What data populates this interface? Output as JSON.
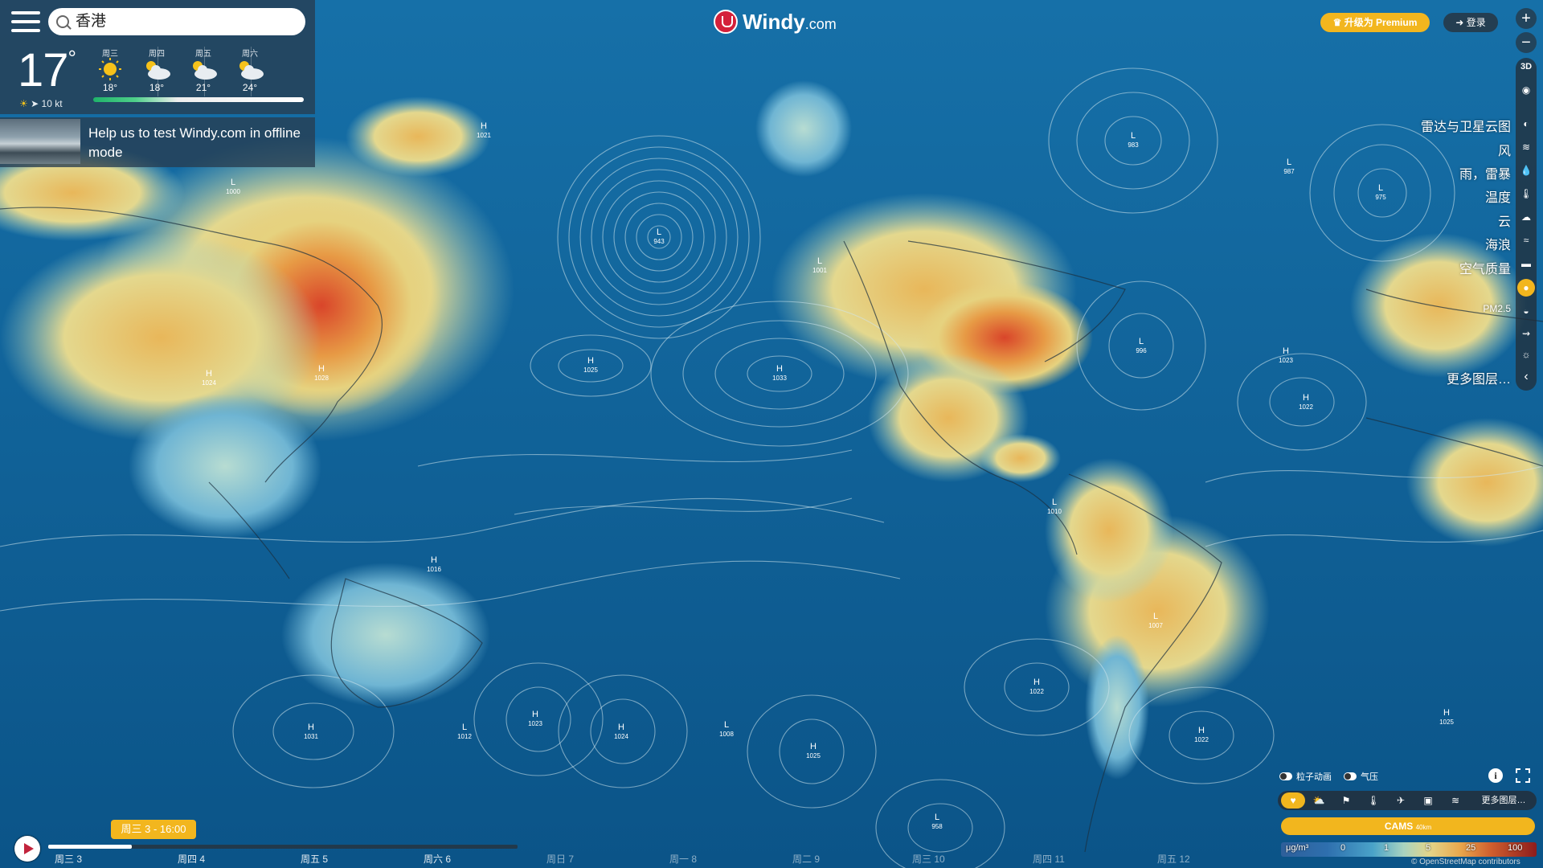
{
  "search": {
    "value": "香港"
  },
  "current": {
    "temp": "17",
    "unit": "°",
    "wind": "10 kt"
  },
  "forecast": [
    {
      "day": "周三",
      "temp": "18°",
      "icon": "sun-icon"
    },
    {
      "day": "周四",
      "temp": "18°",
      "icon": "partly-cloudy-icon"
    },
    {
      "day": "周五",
      "temp": "21°",
      "icon": "partly-cloudy-icon"
    },
    {
      "day": "周六",
      "temp": "24°",
      "icon": "partly-cloudy-icon"
    }
  ],
  "promo": {
    "text": "Help us to test Windy.com in offline mode"
  },
  "logo": {
    "name": "Windy",
    "suffix": ".com"
  },
  "topbar": {
    "premium": "升级为 Premium",
    "login": "登录"
  },
  "zoom": {
    "in": "+",
    "out": "−"
  },
  "layers": [
    {
      "label": "雷达与卫星云图",
      "icon": "radar-icon"
    },
    {
      "label": "风",
      "icon": "wind-icon"
    },
    {
      "label": "雨，雷暴",
      "icon": "rain-icon"
    },
    {
      "label": "温度",
      "icon": "thermometer-icon"
    },
    {
      "label": "云",
      "icon": "cloud-icon"
    },
    {
      "label": "海浪",
      "icon": "waves-icon"
    },
    {
      "label": "空气质量",
      "icon": "car-icon"
    },
    {
      "label": "PM2.5",
      "icon": "pm25-icon"
    },
    {
      "label": "更多图层…",
      "icon": "chevron-left-icon"
    }
  ],
  "rail_extra": {
    "mode3d": "3D"
  },
  "map": {
    "pressure_centers": [
      {
        "t": "H",
        "v": "1025"
      },
      {
        "t": "H",
        "v": "1033"
      },
      {
        "t": "L",
        "v": "943"
      },
      {
        "t": "L",
        "v": "983"
      },
      {
        "t": "H",
        "v": "1028"
      },
      {
        "t": "H",
        "v": "1024"
      },
      {
        "t": "L",
        "v": "1001"
      },
      {
        "t": "L",
        "v": "996"
      },
      {
        "t": "H",
        "v": "1023"
      },
      {
        "t": "H",
        "v": "1022"
      },
      {
        "t": "H",
        "v": "1031"
      },
      {
        "t": "H",
        "v": "1023"
      },
      {
        "t": "H",
        "v": "1024"
      },
      {
        "t": "L",
        "v": "1008"
      },
      {
        "t": "H",
        "v": "1025"
      },
      {
        "t": "H",
        "v": "1022"
      },
      {
        "t": "H",
        "v": "1022"
      },
      {
        "t": "H",
        "v": "1025"
      },
      {
        "t": "L",
        "v": "1000"
      },
      {
        "t": "L",
        "v": "1012"
      },
      {
        "t": "H",
        "v": "1016"
      },
      {
        "t": "L",
        "v": "1007"
      },
      {
        "t": "L",
        "v": "987"
      },
      {
        "t": "L",
        "v": "975"
      },
      {
        "t": "H",
        "v": "1021"
      },
      {
        "t": "L",
        "v": "1010"
      },
      {
        "t": "L",
        "v": "958"
      }
    ]
  },
  "timeline": {
    "current": "周三 3 - 16:00",
    "days": [
      "周三 3",
      "周四 4",
      "周五 5",
      "周六 6",
      "周日 7",
      "周一 8",
      "周二 9",
      "周三 10",
      "周四 11",
      "周五 12"
    ]
  },
  "controls": {
    "particles": "粒子动画",
    "pressure": "气压",
    "more_layers": "更多图层…",
    "model": "CAMS",
    "model_res": "40km"
  },
  "legend": {
    "unit": "μg/m³",
    "ticks": [
      "0",
      "1",
      "5",
      "25",
      "100"
    ]
  },
  "attribution": "© OpenStreetMap contributors",
  "colors": {
    "accent": "#f2b61e",
    "brand": "#d4203a",
    "ocean": "#0d5a92"
  }
}
